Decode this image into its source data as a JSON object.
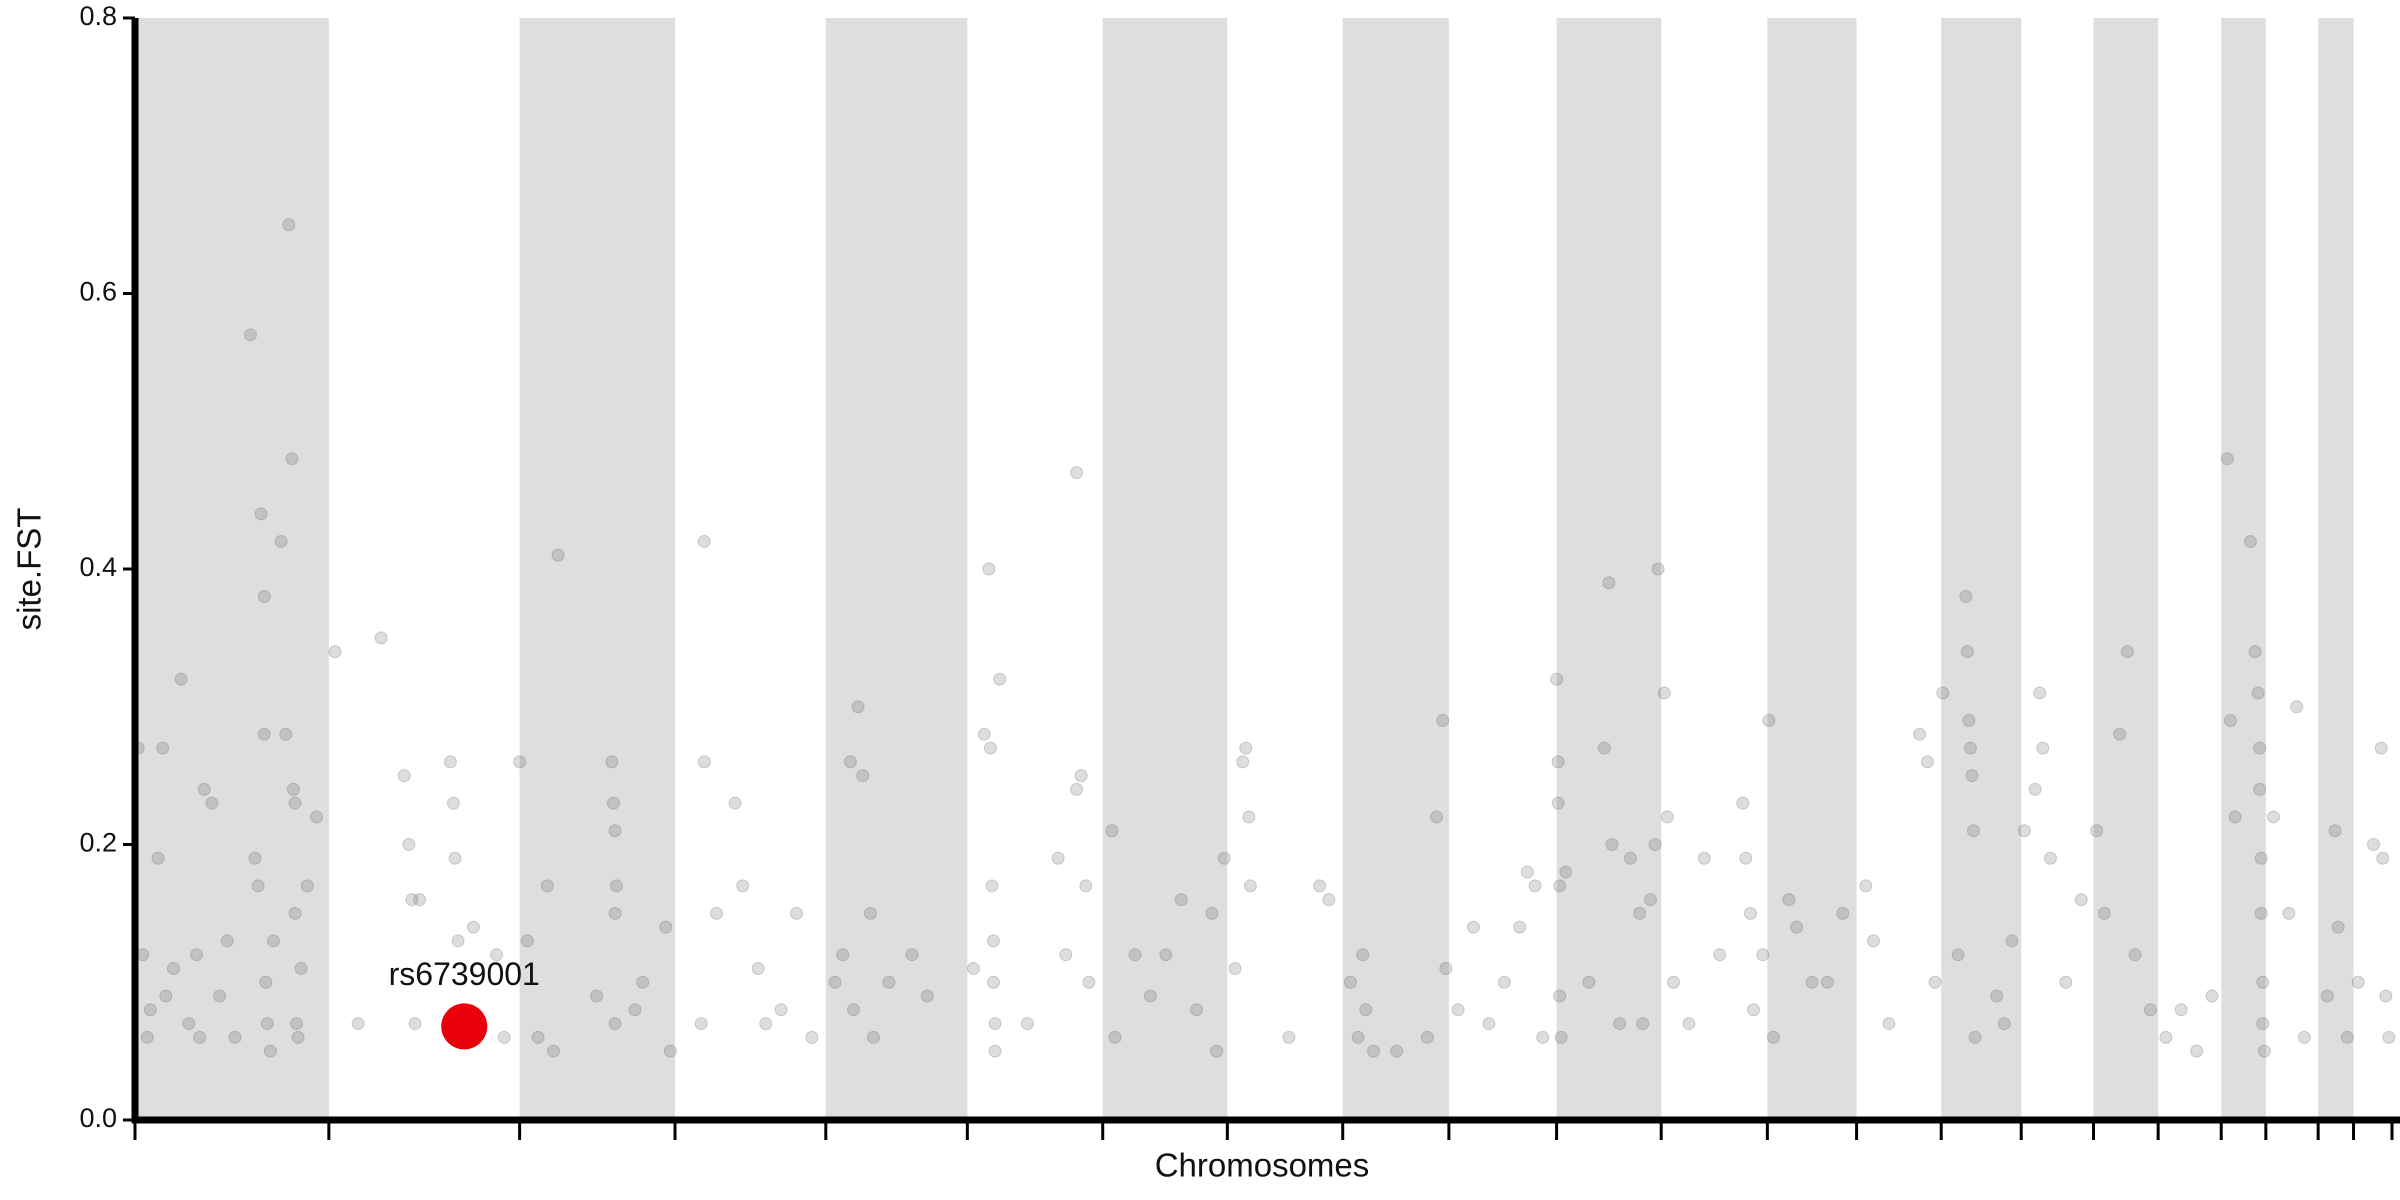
{
  "chart_data": {
    "type": "scatter",
    "ylabel": "site.FST",
    "xlabel": "Chromosomes",
    "xlim": [
      0,
      1467
    ],
    "ylim": [
      0,
      0.8
    ],
    "xticks": [
      0,
      126,
      250,
      351,
      449,
      541,
      629,
      710,
      785,
      854,
      924,
      992,
      1061,
      1119,
      1174,
      1226,
      1273,
      1315,
      1356,
      1385,
      1419,
      1442,
      1467
    ],
    "yticks": [
      {
        "value": 0,
        "label": "0.0"
      },
      0.2,
      0.4,
      0.6,
      0.8
    ],
    "band_color": "#dedede",
    "color": "#555555",
    "x": [
      2,
      5,
      8,
      10,
      15,
      18,
      20,
      25,
      30,
      35,
      40,
      42,
      45,
      50,
      55,
      60,
      65,
      75,
      78,
      80,
      82,
      84,
      84,
      85,
      86,
      88,
      90,
      95,
      98,
      100,
      102,
      103,
      104,
      104,
      105,
      106,
      108,
      112,
      118,
      130,
      145,
      160,
      175,
      178,
      180,
      182,
      185,
      205,
      207,
      208,
      210,
      220,
      235,
      240,
      250,
      255,
      262,
      268,
      272,
      275,
      300,
      310,
      311,
      312,
      313,
      312,
      312,
      325,
      330,
      345,
      348,
      368,
      370,
      370,
      378,
      390,
      395,
      405,
      410,
      420,
      430,
      440,
      455,
      460,
      465,
      467,
      470,
      473,
      478,
      480,
      490,
      505,
      515,
      545,
      552,
      555,
      556,
      557,
      558,
      558,
      559,
      559,
      562,
      580,
      600,
      605,
      612,
      612,
      615,
      618,
      620,
      635,
      637,
      650,
      660,
      670,
      680,
      690,
      700,
      703,
      708,
      715,
      720,
      722,
      724,
      725,
      750,
      770,
      776,
      790,
      795,
      798,
      800,
      805,
      820,
      840,
      846,
      850,
      852,
      860,
      870,
      880,
      890,
      900,
      905,
      910,
      915,
      924,
      925,
      925,
      926,
      926,
      927,
      930,
      945,
      955,
      958,
      960,
      965,
      972,
      978,
      980,
      985,
      988,
      990,
      994,
      996,
      1000,
      1010,
      1020,
      1030,
      1045,
      1047,
      1050,
      1052,
      1058,
      1062,
      1065,
      1075,
      1080,
      1090,
      1100,
      1110,
      1125,
      1130,
      1140,
      1160,
      1165,
      1170,
      1175,
      1185,
      1190,
      1191,
      1192,
      1193,
      1194,
      1195,
      1196,
      1210,
      1215,
      1220,
      1228,
      1235,
      1238,
      1240,
      1245,
      1255,
      1265,
      1275,
      1280,
      1290,
      1295,
      1300,
      1310,
      1320,
      1330,
      1340,
      1350,
      1360,
      1362,
      1365,
      1375,
      1378,
      1380,
      1381,
      1381,
      1382,
      1382,
      1383,
      1383,
      1384,
      1390,
      1400,
      1405,
      1410,
      1425,
      1430,
      1432,
      1438,
      1445,
      1455,
      1460,
      1461,
      1463,
      1465
    ],
    "values": [
      0.27,
      0.12,
      0.06,
      0.08,
      0.19,
      0.27,
      0.09,
      0.11,
      0.32,
      0.07,
      0.12,
      0.06,
      0.24,
      0.23,
      0.09,
      0.13,
      0.06,
      0.57,
      0.19,
      0.17,
      0.44,
      0.38,
      0.28,
      0.1,
      0.07,
      0.05,
      0.13,
      0.42,
      0.28,
      0.65,
      0.48,
      0.24,
      0.23,
      0.15,
      0.07,
      0.06,
      0.11,
      0.17,
      0.22,
      0.34,
      0.07,
      0.35,
      0.25,
      0.2,
      0.16,
      0.07,
      0.16,
      0.26,
      0.23,
      0.19,
      0.13,
      0.14,
      0.12,
      0.06,
      0.26,
      0.13,
      0.06,
      0.17,
      0.05,
      0.41,
      0.09,
      0.26,
      0.23,
      0.21,
      0.17,
      0.15,
      0.07,
      0.08,
      0.1,
      0.14,
      0.05,
      0.07,
      0.42,
      0.26,
      0.15,
      0.23,
      0.17,
      0.11,
      0.07,
      0.08,
      0.15,
      0.06,
      0.1,
      0.12,
      0.26,
      0.08,
      0.3,
      0.25,
      0.15,
      0.06,
      0.1,
      0.12,
      0.09,
      0.11,
      0.28,
      0.4,
      0.27,
      0.17,
      0.13,
      0.1,
      0.07,
      0.05,
      0.32,
      0.07,
      0.19,
      0.12,
      0.47,
      0.24,
      0.25,
      0.17,
      0.1,
      0.21,
      0.06,
      0.12,
      0.09,
      0.12,
      0.16,
      0.08,
      0.15,
      0.05,
      0.19,
      0.11,
      0.26,
      0.27,
      0.22,
      0.17,
      0.06,
      0.17,
      0.16,
      0.1,
      0.06,
      0.12,
      0.08,
      0.05,
      0.05,
      0.06,
      0.22,
      0.29,
      0.11,
      0.08,
      0.14,
      0.07,
      0.1,
      0.14,
      0.18,
      0.17,
      0.06,
      0.32,
      0.26,
      0.23,
      0.17,
      0.09,
      0.06,
      0.18,
      0.1,
      0.27,
      0.39,
      0.2,
      0.07,
      0.19,
      0.15,
      0.07,
      0.16,
      0.2,
      0.4,
      0.31,
      0.22,
      0.1,
      0.07,
      0.19,
      0.12,
      0.23,
      0.19,
      0.15,
      0.08,
      0.12,
      0.29,
      0.06,
      0.16,
      0.14,
      0.1,
      0.1,
      0.15,
      0.17,
      0.13,
      0.07,
      0.28,
      0.26,
      0.1,
      0.31,
      0.12,
      0.38,
      0.34,
      0.29,
      0.27,
      0.25,
      0.21,
      0.06,
      0.09,
      0.07,
      0.13,
      0.21,
      0.24,
      0.31,
      0.27,
      0.19,
      0.1,
      0.16,
      0.21,
      0.15,
      0.28,
      0.34,
      0.12,
      0.08,
      0.06,
      0.08,
      0.05,
      0.09,
      0.48,
      0.29,
      0.22,
      0.42,
      0.34,
      0.31,
      0.27,
      0.24,
      0.19,
      0.15,
      0.1,
      0.07,
      0.05,
      0.22,
      0.15,
      0.3,
      0.06,
      0.09,
      0.21,
      0.14,
      0.06,
      0.1,
      0.2,
      0.27,
      0.19,
      0.09,
      0.06
    ],
    "highlight": {
      "label": "rs6739001",
      "x": 214,
      "value": 0.068,
      "color": "#e8000b"
    }
  }
}
